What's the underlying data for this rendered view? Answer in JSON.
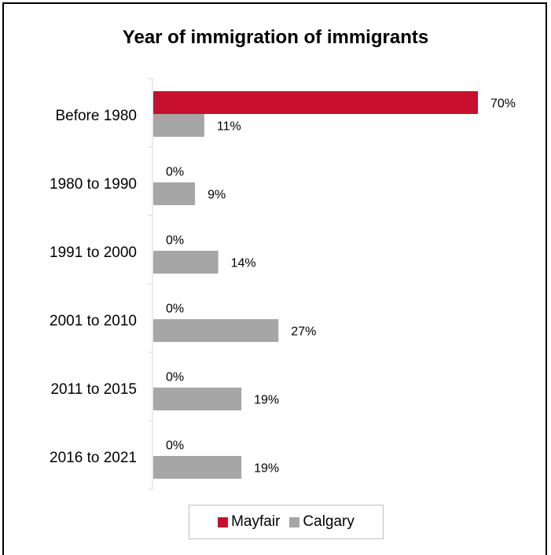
{
  "chart_data": {
    "type": "bar",
    "orientation": "horizontal",
    "title": "Year of immigration of immigrants",
    "categories": [
      "Before 1980",
      "1980 to 1990",
      "1991 to 2000",
      "2001 to 2010",
      "2011 to 2015",
      "2016 to 2021"
    ],
    "series": [
      {
        "name": "Mayfair",
        "color": "#c8102e",
        "values": [
          70,
          0,
          0,
          0,
          0,
          0
        ],
        "labels": [
          "70%",
          "0%",
          "0%",
          "0%",
          "0%",
          "0%"
        ]
      },
      {
        "name": "Calgary",
        "color": "#a6a6a6",
        "values": [
          11,
          9,
          14,
          27,
          19,
          19
        ],
        "labels": [
          "11%",
          "9%",
          "14%",
          "27%",
          "19%",
          "19%"
        ]
      }
    ],
    "xlim": [
      0,
      70
    ],
    "grid": false,
    "legend": "bottom"
  }
}
